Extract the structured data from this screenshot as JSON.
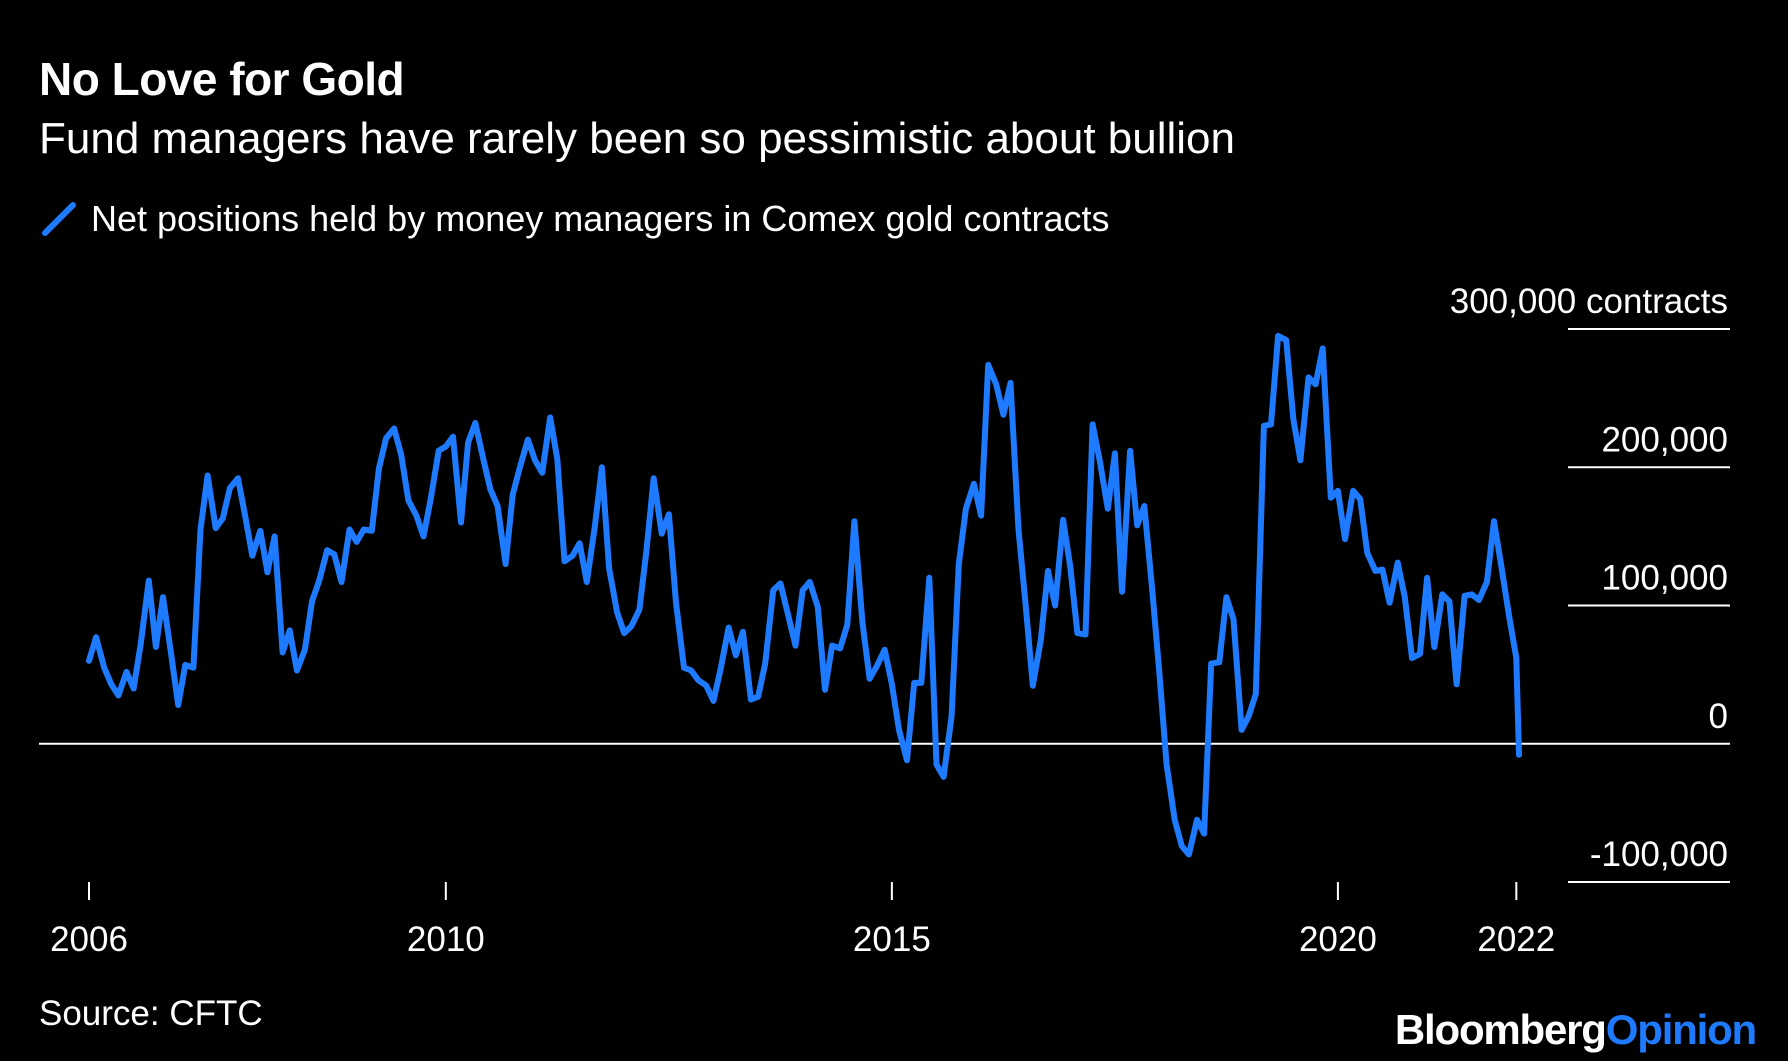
{
  "header": {
    "title": "No Love for Gold",
    "subtitle": "Fund managers have rarely been so pessimistic about bullion"
  },
  "footer": {
    "source": "Source: CFTC",
    "brand_main": "Bloomberg",
    "brand_accent": "Opinion"
  },
  "colors": {
    "background": "#000000",
    "series": "#1e7bff",
    "text": "#ffffff",
    "gridline": "#ffffff"
  },
  "chart_data": {
    "type": "line",
    "title": "No Love for Gold",
    "subtitle": "Fund managers have rarely been so pessimistic about bullion",
    "xlabel": "",
    "ylabel": "",
    "y_unit": "contracts",
    "xlim": [
      2006,
      2022.03
    ],
    "ylim": [
      -100000,
      300000
    ],
    "x_ticks": [
      2006,
      2010,
      2015,
      2020,
      2022
    ],
    "x_tick_labels": [
      "2006",
      "2010",
      "2015",
      "2020",
      "2022"
    ],
    "y_ticks": [
      -100000,
      0,
      100000,
      200000,
      300000
    ],
    "y_tick_labels": [
      "-100,000",
      "0",
      "100,000",
      "200,000",
      "300,000 contracts"
    ],
    "grid": true,
    "legend_position": "top-left",
    "series": [
      {
        "name": "Net positions held by money managers in Comex gold contracts",
        "color": "#1e7bff",
        "points": [
          [
            2006.0,
            60000
          ],
          [
            2006.08,
            77000
          ],
          [
            2006.17,
            55000
          ],
          [
            2006.25,
            43000
          ],
          [
            2006.33,
            35000
          ],
          [
            2006.42,
            52000
          ],
          [
            2006.5,
            40000
          ],
          [
            2006.58,
            72000
          ],
          [
            2006.67,
            118000
          ],
          [
            2006.75,
            70000
          ],
          [
            2006.83,
            106000
          ],
          [
            2006.92,
            65000
          ],
          [
            2007.0,
            28000
          ],
          [
            2007.08,
            57000
          ],
          [
            2007.17,
            55000
          ],
          [
            2007.25,
            155000
          ],
          [
            2007.33,
            194000
          ],
          [
            2007.42,
            156000
          ],
          [
            2007.5,
            163000
          ],
          [
            2007.58,
            185000
          ],
          [
            2007.67,
            192000
          ],
          [
            2007.75,
            165000
          ],
          [
            2007.83,
            136000
          ],
          [
            2007.92,
            154000
          ],
          [
            2008.0,
            124000
          ],
          [
            2008.08,
            150000
          ],
          [
            2008.17,
            66000
          ],
          [
            2008.25,
            82000
          ],
          [
            2008.33,
            53000
          ],
          [
            2008.42,
            68000
          ],
          [
            2008.5,
            103000
          ],
          [
            2008.58,
            118000
          ],
          [
            2008.67,
            140000
          ],
          [
            2008.75,
            137000
          ],
          [
            2008.83,
            117000
          ],
          [
            2008.92,
            155000
          ],
          [
            2009.0,
            146000
          ],
          [
            2009.08,
            155000
          ],
          [
            2009.17,
            154000
          ],
          [
            2009.25,
            199000
          ],
          [
            2009.33,
            221000
          ],
          [
            2009.42,
            228000
          ],
          [
            2009.5,
            209000
          ],
          [
            2009.58,
            176000
          ],
          [
            2009.67,
            165000
          ],
          [
            2009.75,
            150000
          ],
          [
            2009.83,
            177000
          ],
          [
            2009.92,
            212000
          ],
          [
            2010.0,
            215000
          ],
          [
            2010.08,
            222000
          ],
          [
            2010.17,
            160000
          ],
          [
            2010.25,
            218000
          ],
          [
            2010.33,
            232000
          ],
          [
            2010.42,
            206000
          ],
          [
            2010.5,
            184000
          ],
          [
            2010.58,
            172000
          ],
          [
            2010.67,
            130000
          ],
          [
            2010.75,
            180000
          ],
          [
            2010.83,
            200000
          ],
          [
            2010.92,
            220000
          ],
          [
            2011.0,
            205000
          ],
          [
            2011.08,
            196000
          ],
          [
            2011.17,
            236000
          ],
          [
            2011.25,
            206000
          ],
          [
            2011.33,
            132000
          ],
          [
            2011.42,
            136000
          ],
          [
            2011.5,
            145000
          ],
          [
            2011.58,
            117000
          ],
          [
            2011.67,
            157000
          ],
          [
            2011.75,
            200000
          ],
          [
            2011.83,
            127000
          ],
          [
            2011.92,
            95000
          ],
          [
            2012.0,
            80000
          ],
          [
            2012.08,
            85000
          ],
          [
            2012.17,
            97000
          ],
          [
            2012.25,
            140000
          ],
          [
            2012.33,
            192000
          ],
          [
            2012.42,
            152000
          ],
          [
            2012.5,
            166000
          ],
          [
            2012.58,
            102000
          ],
          [
            2012.67,
            55000
          ],
          [
            2012.75,
            53000
          ],
          [
            2012.83,
            46000
          ],
          [
            2012.92,
            42000
          ],
          [
            2013.0,
            31000
          ],
          [
            2013.08,
            54000
          ],
          [
            2013.17,
            84000
          ],
          [
            2013.25,
            64000
          ],
          [
            2013.33,
            81000
          ],
          [
            2013.42,
            32000
          ],
          [
            2013.5,
            34000
          ],
          [
            2013.58,
            58000
          ],
          [
            2013.67,
            111000
          ],
          [
            2013.75,
            116000
          ],
          [
            2013.83,
            95000
          ],
          [
            2013.92,
            71000
          ],
          [
            2014.0,
            111000
          ],
          [
            2014.08,
            117000
          ],
          [
            2014.17,
            99000
          ],
          [
            2014.25,
            39000
          ],
          [
            2014.33,
            71000
          ],
          [
            2014.42,
            69000
          ],
          [
            2014.5,
            86000
          ],
          [
            2014.58,
            161000
          ],
          [
            2014.67,
            88000
          ],
          [
            2014.75,
            47000
          ],
          [
            2014.83,
            56000
          ],
          [
            2014.92,
            68000
          ],
          [
            2015.0,
            43000
          ],
          [
            2015.08,
            10000
          ],
          [
            2015.17,
            -12000
          ],
          [
            2015.25,
            44000
          ],
          [
            2015.33,
            44000
          ],
          [
            2015.42,
            120000
          ],
          [
            2015.5,
            -15000
          ],
          [
            2015.58,
            -24000
          ],
          [
            2015.67,
            20000
          ],
          [
            2015.75,
            130000
          ],
          [
            2015.83,
            170000
          ],
          [
            2015.92,
            188000
          ],
          [
            2016.0,
            165000
          ],
          [
            2016.08,
            274000
          ],
          [
            2016.17,
            260000
          ],
          [
            2016.25,
            238000
          ],
          [
            2016.33,
            261000
          ],
          [
            2016.42,
            155000
          ],
          [
            2016.5,
            100000
          ],
          [
            2016.58,
            42000
          ],
          [
            2016.67,
            75000
          ],
          [
            2016.75,
            125000
          ],
          [
            2016.83,
            100000
          ],
          [
            2016.92,
            162000
          ],
          [
            2017.0,
            128000
          ],
          [
            2017.08,
            80000
          ],
          [
            2017.17,
            79000
          ],
          [
            2017.25,
            231000
          ],
          [
            2017.33,
            205000
          ],
          [
            2017.42,
            170000
          ],
          [
            2017.5,
            210000
          ],
          [
            2017.58,
            110000
          ],
          [
            2017.67,
            212000
          ],
          [
            2017.75,
            158000
          ],
          [
            2017.83,
            172000
          ],
          [
            2017.92,
            110000
          ],
          [
            2018.0,
            50000
          ],
          [
            2018.08,
            -15000
          ],
          [
            2018.17,
            -55000
          ],
          [
            2018.25,
            -74000
          ],
          [
            2018.33,
            -80000
          ],
          [
            2018.42,
            -55000
          ],
          [
            2018.5,
            -65000
          ],
          [
            2018.58,
            58000
          ],
          [
            2018.67,
            59000
          ],
          [
            2018.75,
            106000
          ],
          [
            2018.83,
            90000
          ],
          [
            2018.92,
            10000
          ],
          [
            2019.0,
            20000
          ],
          [
            2019.08,
            36000
          ],
          [
            2019.17,
            230000
          ],
          [
            2019.25,
            231000
          ],
          [
            2019.33,
            295000
          ],
          [
            2019.42,
            292000
          ],
          [
            2019.5,
            235000
          ],
          [
            2019.58,
            205000
          ],
          [
            2019.67,
            265000
          ],
          [
            2019.75,
            260000
          ],
          [
            2019.83,
            286000
          ],
          [
            2019.92,
            178000
          ],
          [
            2020.0,
            183000
          ],
          [
            2020.08,
            148000
          ],
          [
            2020.17,
            183000
          ],
          [
            2020.25,
            177000
          ],
          [
            2020.33,
            138000
          ],
          [
            2020.42,
            125000
          ],
          [
            2020.5,
            126000
          ],
          [
            2020.58,
            102000
          ],
          [
            2020.67,
            131000
          ],
          [
            2020.75,
            106000
          ],
          [
            2020.83,
            62000
          ],
          [
            2020.92,
            65000
          ],
          [
            2021.0,
            120000
          ],
          [
            2021.08,
            70000
          ],
          [
            2021.17,
            108000
          ],
          [
            2021.25,
            103000
          ],
          [
            2021.33,
            43000
          ],
          [
            2021.42,
            107000
          ],
          [
            2021.5,
            108000
          ],
          [
            2021.58,
            104000
          ],
          [
            2021.67,
            117000
          ],
          [
            2021.75,
            161000
          ],
          [
            2021.83,
            129000
          ],
          [
            2021.92,
            92000
          ],
          [
            2022.0,
            62000
          ],
          [
            2022.03,
            -8000
          ]
        ]
      }
    ]
  }
}
